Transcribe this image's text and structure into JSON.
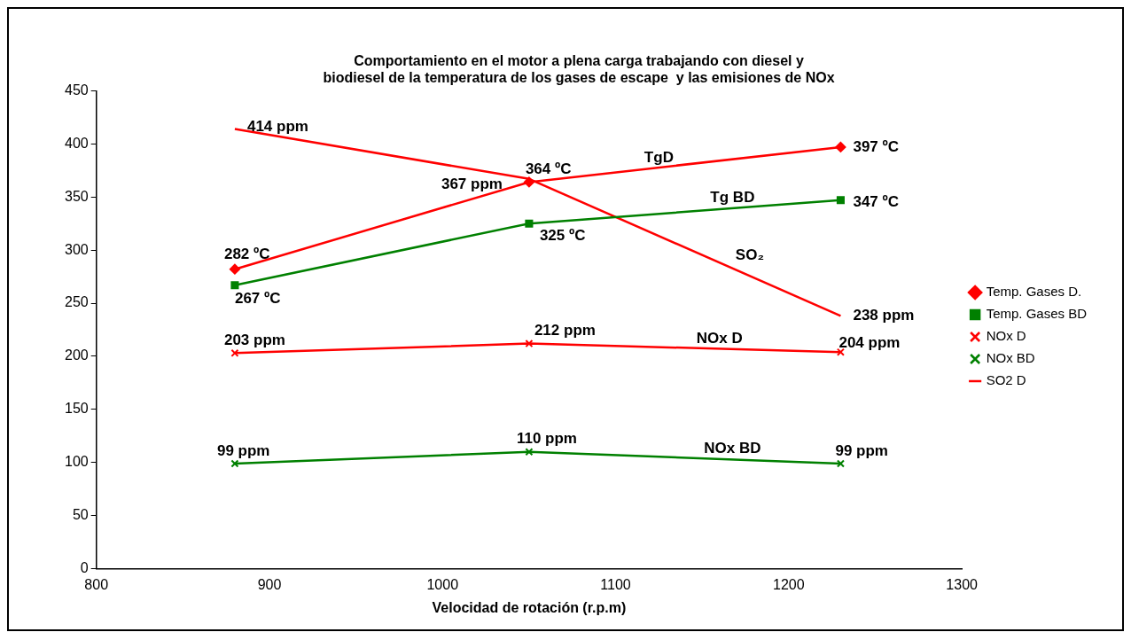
{
  "chart_data": {
    "type": "line",
    "title": "Comportamiento en el motor a plena carga trabajando con diesel y biodiesel de la temperatura de los gases de escape  y las emisiones de NOx",
    "xlabel": "Velocidad de rotación (r.p.m)",
    "x": [
      880,
      1050,
      1230
    ],
    "xlim": [
      800,
      1300
    ],
    "xticks": [
      800,
      900,
      1000,
      1100,
      1200,
      1300
    ],
    "ylim": [
      0,
      450
    ],
    "yticks": [
      0,
      50,
      100,
      150,
      200,
      250,
      300,
      350,
      400,
      450
    ],
    "grid": false,
    "legend": "right",
    "series": [
      {
        "name": "Temp. Gases D.",
        "color": "#ff0000",
        "marker": "diamond",
        "values": [
          282,
          364,
          397
        ],
        "value_labels": [
          "282 ºC",
          "364 ºC",
          "397 ºC"
        ]
      },
      {
        "name": "Temp. Gases BD",
        "color": "#008000",
        "marker": "square",
        "values": [
          267,
          325,
          347
        ],
        "value_labels": [
          "267 ºC",
          "325 ºC",
          "347 ºC"
        ]
      },
      {
        "name": "NOx D",
        "color": "#ff0000",
        "marker": "cross",
        "values": [
          203,
          212,
          204
        ],
        "value_labels": [
          "203 ppm",
          "212 ppm",
          "204 ppm"
        ]
      },
      {
        "name": "NOx BD",
        "color": "#008000",
        "marker": "cross",
        "values": [
          99,
          110,
          99
        ],
        "value_labels": [
          "99 ppm",
          "110 ppm",
          "99 ppm"
        ]
      },
      {
        "name": "SO2 D",
        "color": "#ff0000",
        "values": [
          414,
          367,
          238
        ],
        "value_labels": [
          "414 ppm",
          "367 ppm",
          "238 ppm"
        ]
      }
    ],
    "annotations": [
      "TgD",
      "Tg BD",
      "SO₂",
      "NOx D",
      "NOx BD"
    ]
  }
}
